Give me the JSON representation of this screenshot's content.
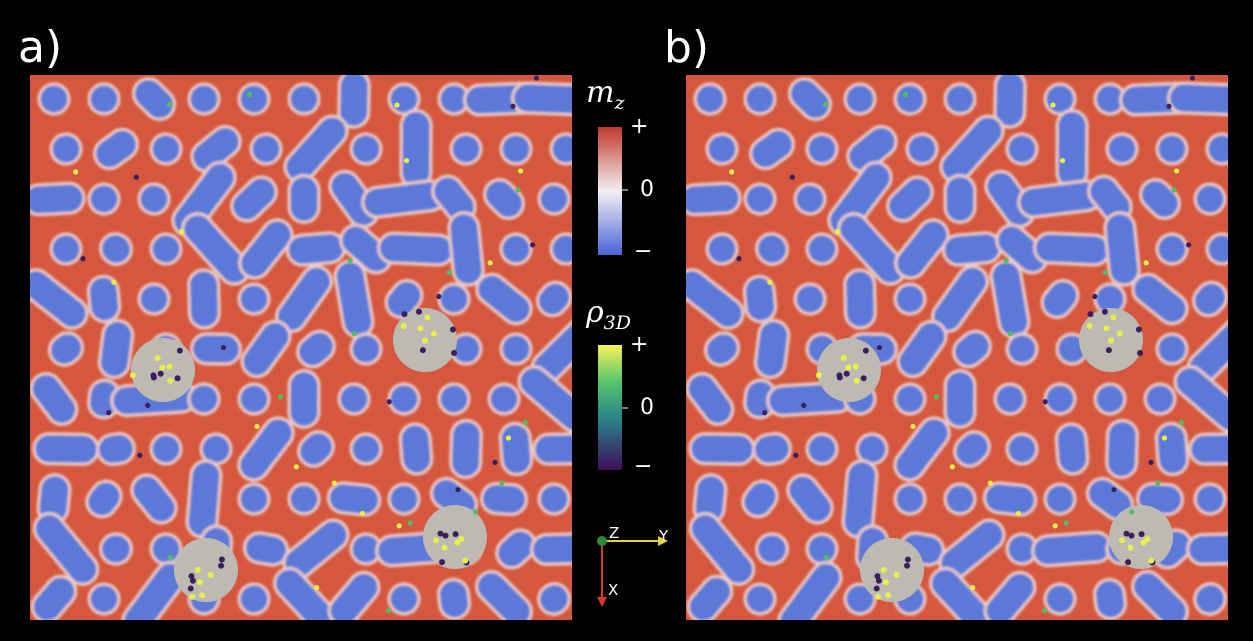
{
  "panels": [
    {
      "label": "a)"
    },
    {
      "label": "b)"
    }
  ],
  "colorbars": [
    {
      "symbol": "m",
      "subscript": "z",
      "ticks": [
        "+",
        "0",
        "−"
      ]
    },
    {
      "symbol": "ρ",
      "subscript": "3D",
      "ticks": [
        "+",
        "0",
        "−"
      ]
    }
  ],
  "axes": {
    "z": "Z",
    "y": "Y",
    "x": "X"
  }
}
